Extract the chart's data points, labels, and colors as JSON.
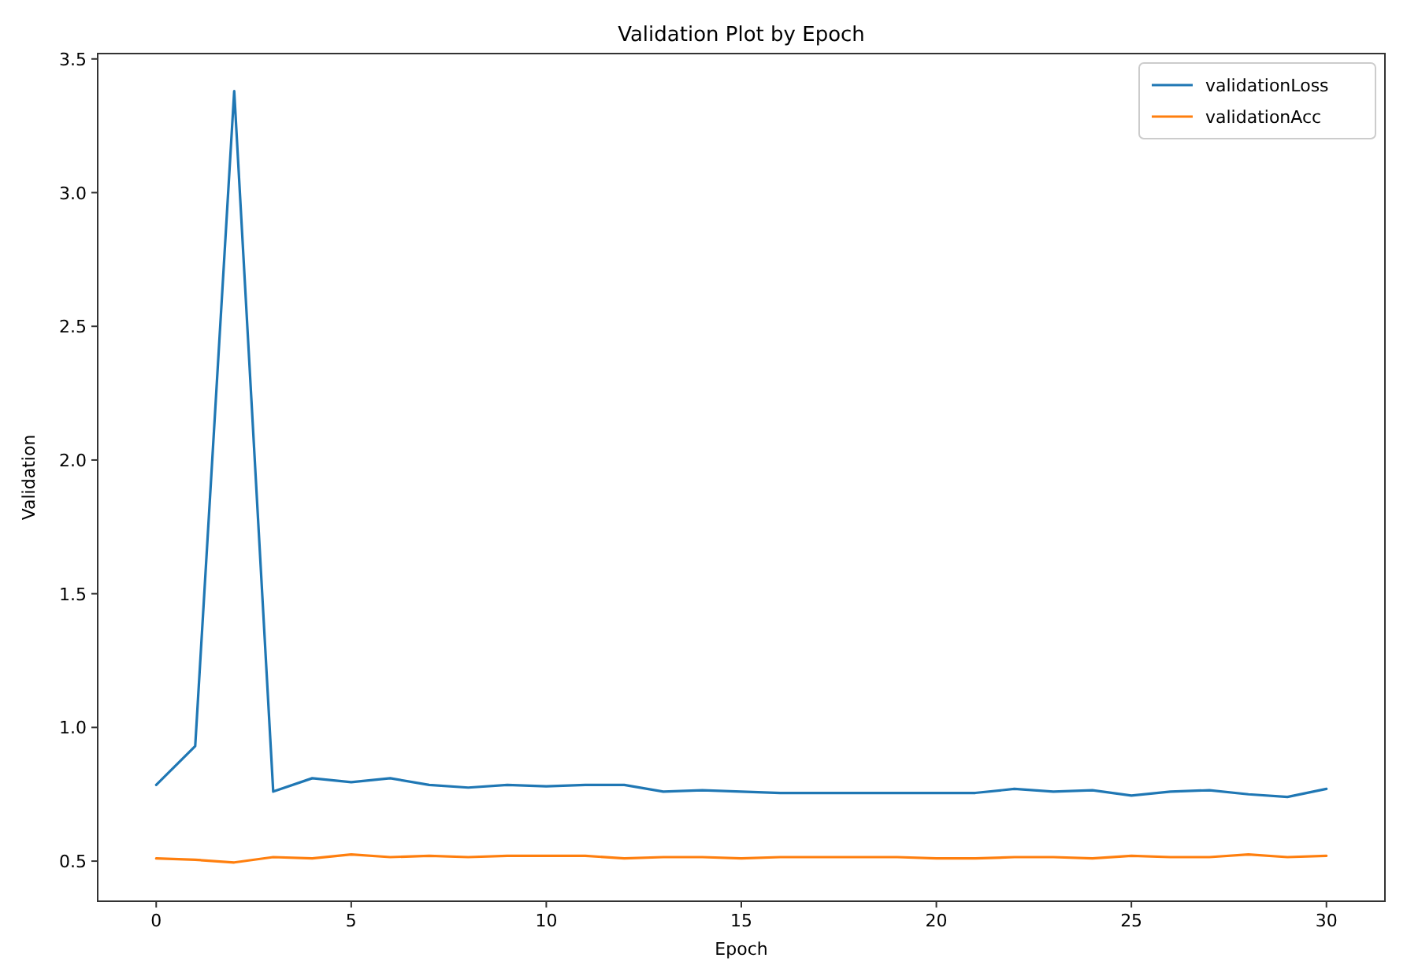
{
  "chart_data": {
    "type": "line",
    "title": "Validation Plot by Epoch",
    "xlabel": "Epoch",
    "ylabel": "Validation",
    "x": [
      0,
      1,
      2,
      3,
      4,
      5,
      6,
      7,
      8,
      9,
      10,
      11,
      12,
      13,
      14,
      15,
      16,
      17,
      18,
      19,
      20,
      21,
      22,
      23,
      24,
      25,
      26,
      27,
      28,
      29,
      30
    ],
    "series": [
      {
        "name": "validationLoss",
        "color": "#1f77b4",
        "values": [
          0.785,
          0.93,
          3.38,
          0.76,
          0.81,
          0.795,
          0.81,
          0.785,
          0.775,
          0.785,
          0.78,
          0.785,
          0.785,
          0.76,
          0.765,
          0.76,
          0.755,
          0.755,
          0.755,
          0.755,
          0.755,
          0.755,
          0.77,
          0.76,
          0.765,
          0.745,
          0.76,
          0.765,
          0.75,
          0.74,
          0.77
        ]
      },
      {
        "name": "validationAcc",
        "color": "#ff7f0e",
        "values": [
          0.51,
          0.505,
          0.495,
          0.515,
          0.51,
          0.525,
          0.515,
          0.52,
          0.515,
          0.52,
          0.52,
          0.52,
          0.51,
          0.515,
          0.515,
          0.51,
          0.515,
          0.515,
          0.515,
          0.515,
          0.51,
          0.51,
          0.515,
          0.515,
          0.51,
          0.52,
          0.515,
          0.515,
          0.525,
          0.515,
          0.52
        ]
      }
    ],
    "xlim": [
      -1.5,
      31.5
    ],
    "ylim": [
      0.35,
      3.52
    ],
    "xticks": [
      0,
      5,
      10,
      15,
      20,
      25,
      30
    ],
    "yticks": [
      {
        "value": 0.5,
        "label": "0.5"
      },
      {
        "value": 1,
        "label": "1.0"
      },
      {
        "value": 1.5,
        "label": "1.5"
      },
      {
        "value": 2,
        "label": "2.0"
      },
      {
        "value": 2.5,
        "label": "2.5"
      },
      {
        "value": 3,
        "label": "3.0"
      },
      {
        "value": 3.5,
        "label": "3.5"
      }
    ],
    "grid": false,
    "legend": "top right",
    "marker": "none",
    "line_style": "solid"
  }
}
